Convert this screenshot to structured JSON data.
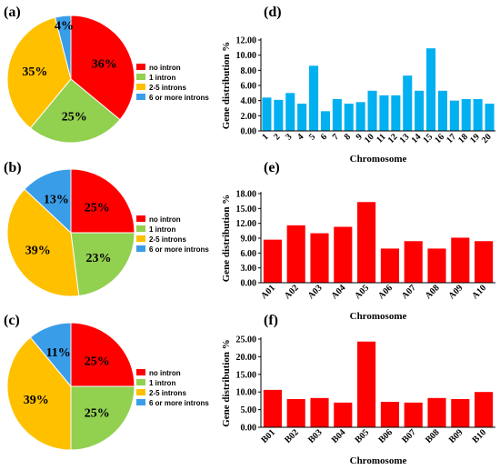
{
  "panels": {
    "a": "(a)",
    "b": "(b)",
    "c": "(c)",
    "d": "(d)",
    "e": "(e)",
    "f": "(f)"
  },
  "legend": {
    "items": [
      "no intron",
      "1 intron",
      "2-5 introns",
      "6 or more introns"
    ],
    "colors": [
      "#ff0000",
      "#92d050",
      "#ffc000",
      "#3a9de8"
    ]
  },
  "chart_data": [
    {
      "id": "a",
      "type": "pie",
      "categories": [
        "no intron",
        "1 intron",
        "2-5 introns",
        "6 or more introns"
      ],
      "values": [
        36,
        25,
        35,
        4
      ],
      "labels": [
        "36%",
        "25%",
        "35%",
        "4%"
      ]
    },
    {
      "id": "b",
      "type": "pie",
      "categories": [
        "no intron",
        "1 intron",
        "2-5 introns",
        "6 or more introns"
      ],
      "values": [
        25,
        23,
        39,
        13
      ],
      "labels": [
        "25%",
        "23%",
        "39%",
        "13%"
      ]
    },
    {
      "id": "c",
      "type": "pie",
      "categories": [
        "no intron",
        "1 intron",
        "2-5 introns",
        "6 or more introns"
      ],
      "values": [
        25,
        25,
        39,
        11
      ],
      "labels": [
        "25%",
        "25%",
        "39%",
        "11%"
      ]
    },
    {
      "id": "d",
      "type": "bar",
      "color": "#00b0f0",
      "categories": [
        "1",
        "2",
        "3",
        "4",
        "5",
        "6",
        "7",
        "8",
        "9",
        "10",
        "11",
        "12",
        "13",
        "14",
        "15",
        "16",
        "17",
        "18",
        "19",
        "20"
      ],
      "values": [
        4.4,
        4.1,
        5.0,
        3.6,
        8.6,
        2.6,
        4.2,
        3.6,
        3.8,
        5.3,
        4.7,
        4.7,
        7.3,
        5.3,
        10.9,
        5.3,
        4.0,
        4.2,
        4.2,
        3.6
      ],
      "ylim": [
        0,
        12
      ],
      "yticks": [
        "0.00",
        "2.00",
        "4.00",
        "6.00",
        "8.00",
        "10.00",
        "12.00"
      ],
      "xlabel": "Chromosome",
      "ylabel": "Gene distribution %",
      "x_rotate": false
    },
    {
      "id": "e",
      "type": "bar",
      "color": "#ff0000",
      "categories": [
        "A01",
        "A02",
        "A03",
        "A04",
        "A05",
        "A06",
        "A07",
        "A08",
        "A09",
        "A10"
      ],
      "values": [
        8.7,
        11.6,
        10.0,
        11.3,
        16.3,
        6.9,
        8.4,
        6.9,
        9.1,
        8.4
      ],
      "ylim": [
        0,
        18
      ],
      "yticks": [
        "0.00",
        "3.00",
        "6.00",
        "9.00",
        "12.00",
        "15.00",
        "18.00"
      ],
      "xlabel": "Chromosome",
      "ylabel": "Gene distribution %",
      "x_rotate": true
    },
    {
      "id": "f",
      "type": "bar",
      "color": "#ff0000",
      "categories": [
        "B01",
        "B02",
        "B03",
        "B04",
        "B05",
        "B06",
        "B07",
        "B08",
        "B09",
        "B10"
      ],
      "values": [
        10.6,
        8.0,
        8.3,
        7.0,
        24.3,
        7.2,
        7.0,
        8.3,
        8.0,
        10.0
      ],
      "ylim": [
        0,
        25
      ],
      "yticks": [
        "0.00",
        "5.00",
        "10.00",
        "15.00",
        "20.00",
        "25.00"
      ],
      "xlabel": "Chromosome",
      "ylabel": "Gene distribution %",
      "x_rotate": true
    }
  ]
}
